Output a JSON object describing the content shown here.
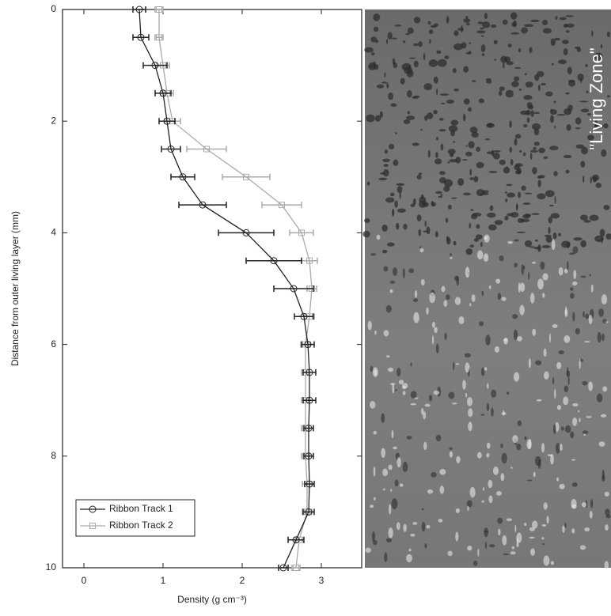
{
  "chart_data": {
    "type": "line",
    "orientation": "vertical",
    "xlabel": "Density (g cm⁻³)",
    "ylabel": "Distance from outer living layer (mm)",
    "xlim": [
      -0.27,
      3.51
    ],
    "xticks": [
      0,
      1,
      2,
      3
    ],
    "ylim": [
      0,
      10
    ],
    "yticks": [
      0,
      2,
      4,
      6,
      8,
      10
    ],
    "y_inverted": true,
    "legend": "lower left",
    "image_annotation": "\"Living Zone\"",
    "series": [
      {
        "name": "Ribbon Track 1",
        "color": "#222222",
        "marker": "circle",
        "depth": [
          0,
          0.5,
          1,
          1.5,
          2,
          2.5,
          3,
          3.5,
          4,
          4.5,
          5,
          5.5,
          6,
          6.5,
          7,
          7.5,
          8,
          8.5,
          9,
          9.5,
          10
        ],
        "values": [
          0.7,
          0.72,
          0.9,
          1.0,
          1.05,
          1.1,
          1.25,
          1.5,
          2.05,
          2.4,
          2.65,
          2.78,
          2.83,
          2.85,
          2.85,
          2.84,
          2.84,
          2.85,
          2.84,
          2.68,
          2.52
        ],
        "errors": [
          0.08,
          0.1,
          0.15,
          0.1,
          0.1,
          0.12,
          0.15,
          0.3,
          0.35,
          0.35,
          0.25,
          0.12,
          0.08,
          0.08,
          0.08,
          0.06,
          0.06,
          0.06,
          0.07,
          0.1,
          0.06
        ]
      },
      {
        "name": "Ribbon Track 2",
        "color": "#aaaaaa",
        "marker": "square",
        "depth": [
          0,
          0.5,
          1,
          1.5,
          2,
          2.5,
          3,
          3.5,
          4,
          4.5,
          5,
          5.5,
          6,
          6.5,
          7,
          7.5,
          8,
          8.5,
          9,
          9.5,
          10
        ],
        "values": [
          0.95,
          0.95,
          1.0,
          1.05,
          1.12,
          1.55,
          2.05,
          2.5,
          2.75,
          2.85,
          2.88,
          2.85,
          2.8,
          2.8,
          2.8,
          2.8,
          2.8,
          2.82,
          2.82,
          2.72,
          2.68
        ],
        "errors": [
          0.05,
          0.05,
          0.08,
          0.08,
          0.1,
          0.25,
          0.3,
          0.25,
          0.15,
          0.1,
          0.06,
          0.06,
          0.06,
          0.05,
          0.05,
          0.05,
          0.05,
          0.06,
          0.06,
          0.05,
          0.05
        ]
      }
    ]
  }
}
